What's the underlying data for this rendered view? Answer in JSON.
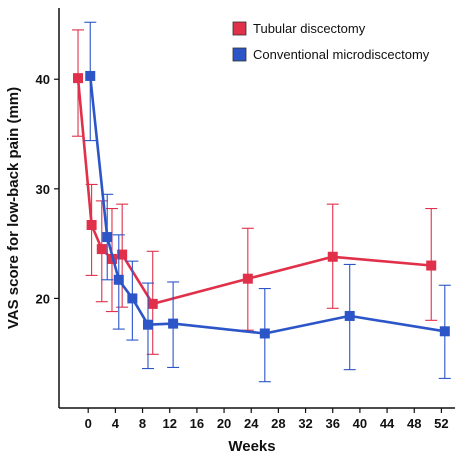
{
  "chart_data": {
    "type": "line",
    "title": "",
    "xlabel": "Weeks",
    "ylabel": "VAS score for low-back pain (mm)",
    "xticks": [
      0,
      4,
      8,
      12,
      16,
      20,
      24,
      28,
      32,
      36,
      40,
      44,
      48,
      52
    ],
    "yticks": [
      20,
      30,
      40
    ],
    "xlim": [
      -4.3,
      54
    ],
    "ylim": [
      10,
      46.5
    ],
    "grid": false,
    "legend_position": "top-right",
    "series": [
      {
        "name": "Tubular discectomy",
        "color": "#e0304a",
        "points": [
          {
            "x": -1.5,
            "y": 40.1,
            "lo": 34.8,
            "hi": 44.5
          },
          {
            "x": 0.5,
            "y": 26.7,
            "lo": 22.1,
            "hi": 30.4
          },
          {
            "x": 2.0,
            "y": 24.5,
            "lo": 19.7,
            "hi": 28.9
          },
          {
            "x": 3.5,
            "y": 23.6,
            "lo": 18.8,
            "hi": 28.2
          },
          {
            "x": 5.0,
            "y": 24.0,
            "lo": 19.2,
            "hi": 28.6
          },
          {
            "x": 9.5,
            "y": 19.5,
            "lo": 14.9,
            "hi": 24.3
          },
          {
            "x": 23.5,
            "y": 21.8,
            "lo": 17.1,
            "hi": 26.4
          },
          {
            "x": 36.0,
            "y": 23.8,
            "lo": 19.1,
            "hi": 28.6
          },
          {
            "x": 50.5,
            "y": 23.0,
            "lo": 18.0,
            "hi": 28.2
          }
        ]
      },
      {
        "name": "Conventional microdiscectomy",
        "color": "#2c55c8",
        "points": [
          {
            "x": 0.3,
            "y": 40.3,
            "lo": 34.4,
            "hi": 45.2
          },
          {
            "x": 2.8,
            "y": 25.6,
            "lo": 21.7,
            "hi": 29.5
          },
          {
            "x": 4.5,
            "y": 21.7,
            "lo": 17.2,
            "hi": 25.8
          },
          {
            "x": 6.5,
            "y": 20.0,
            "lo": 16.2,
            "hi": 23.4
          },
          {
            "x": 8.8,
            "y": 17.6,
            "lo": 13.6,
            "hi": 21.4
          },
          {
            "x": 12.5,
            "y": 17.7,
            "lo": 13.7,
            "hi": 21.5
          },
          {
            "x": 26.0,
            "y": 16.8,
            "lo": 12.4,
            "hi": 20.9
          },
          {
            "x": 38.5,
            "y": 18.4,
            "lo": 13.5,
            "hi": 23.1
          },
          {
            "x": 52.5,
            "y": 17.0,
            "lo": 12.7,
            "hi": 21.2
          }
        ]
      }
    ]
  }
}
